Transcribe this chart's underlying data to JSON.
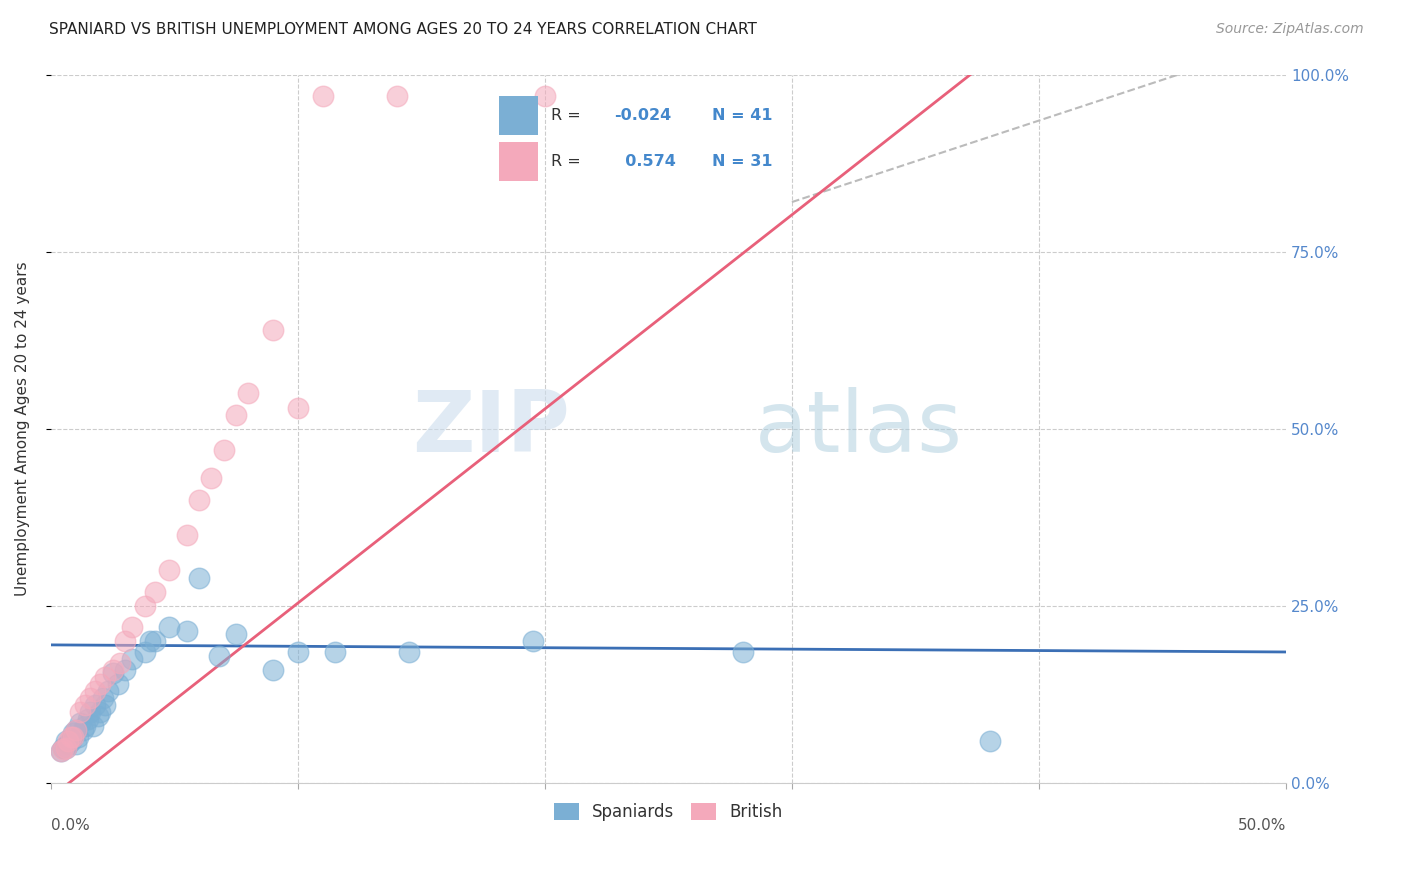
{
  "title": "SPANIARD VS BRITISH UNEMPLOYMENT AMONG AGES 20 TO 24 YEARS CORRELATION CHART",
  "source": "Source: ZipAtlas.com",
  "ylabel": "Unemployment Among Ages 20 to 24 years",
  "xlim": [
    0.0,
    0.5
  ],
  "ylim": [
    0.0,
    1.0
  ],
  "xtick_left_label": "0.0%",
  "xtick_right_label": "50.0%",
  "ytick_labels": [
    "0.0%",
    "25.0%",
    "50.0%",
    "75.0%",
    "100.0%"
  ],
  "ytick_vals": [
    0.0,
    0.25,
    0.5,
    0.75,
    1.0
  ],
  "blue_label": "Spaniards",
  "pink_label": "British",
  "blue_R": "-0.024",
  "blue_N": "41",
  "pink_R": "0.574",
  "pink_N": "31",
  "blue_color": "#7BAFD4",
  "pink_color": "#F4A9BB",
  "blue_trend_color": "#3B6FB5",
  "pink_trend_color": "#E8607A",
  "watermark_zip": "ZIP",
  "watermark_atlas": "atlas",
  "background_color": "#FFFFFF",
  "blue_x": [
    0.004,
    0.005,
    0.006,
    0.006,
    0.007,
    0.008,
    0.009,
    0.01,
    0.01,
    0.011,
    0.012,
    0.013,
    0.014,
    0.015,
    0.016,
    0.017,
    0.018,
    0.019,
    0.02,
    0.021,
    0.022,
    0.023,
    0.025,
    0.027,
    0.03,
    0.033,
    0.038,
    0.04,
    0.042,
    0.048,
    0.055,
    0.06,
    0.068,
    0.075,
    0.09,
    0.1,
    0.115,
    0.145,
    0.195,
    0.28,
    0.38
  ],
  "blue_y": [
    0.045,
    0.05,
    0.05,
    0.06,
    0.055,
    0.06,
    0.07,
    0.055,
    0.075,
    0.065,
    0.085,
    0.075,
    0.08,
    0.09,
    0.1,
    0.08,
    0.11,
    0.095,
    0.1,
    0.12,
    0.11,
    0.13,
    0.155,
    0.14,
    0.16,
    0.175,
    0.185,
    0.2,
    0.2,
    0.22,
    0.215,
    0.29,
    0.18,
    0.21,
    0.16,
    0.185,
    0.185,
    0.185,
    0.2,
    0.185,
    0.06
  ],
  "pink_x": [
    0.004,
    0.005,
    0.006,
    0.007,
    0.008,
    0.009,
    0.01,
    0.012,
    0.014,
    0.016,
    0.018,
    0.02,
    0.022,
    0.025,
    0.028,
    0.03,
    0.033,
    0.038,
    0.042,
    0.048,
    0.055,
    0.06,
    0.065,
    0.07,
    0.075,
    0.08,
    0.09,
    0.1,
    0.11,
    0.14,
    0.2
  ],
  "pink_y": [
    0.045,
    0.048,
    0.05,
    0.06,
    0.065,
    0.065,
    0.075,
    0.1,
    0.11,
    0.12,
    0.13,
    0.14,
    0.15,
    0.16,
    0.17,
    0.2,
    0.22,
    0.25,
    0.27,
    0.3,
    0.35,
    0.4,
    0.43,
    0.47,
    0.52,
    0.55,
    0.64,
    0.53,
    0.97,
    0.97,
    0.97
  ]
}
